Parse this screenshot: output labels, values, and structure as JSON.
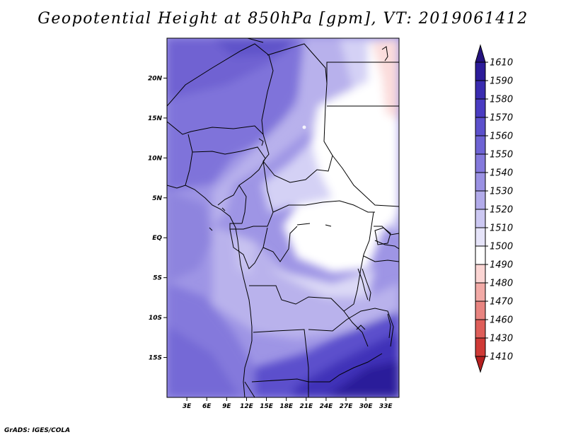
{
  "title": "Geopotential Height at 850hPa [gpm], VT: 2019061412",
  "credit": "GrADS: IGES/COLA",
  "map": {
    "variable": "Geopotential Height at 850hPa",
    "units": "gpm",
    "valid_time": "2019061412",
    "lon_range": [
      0,
      35
    ],
    "lat_range": [
      -20,
      25
    ],
    "x_ticks": [
      "3E",
      "6E",
      "9E",
      "12E",
      "15E",
      "18E",
      "21E",
      "24E",
      "27E",
      "30E",
      "33E"
    ],
    "y_ticks": [
      "20N",
      "15N",
      "10N",
      "5N",
      "EQ",
      "5S",
      "10S",
      "15S"
    ]
  },
  "colorbar": {
    "levels": [
      "1610",
      "1590",
      "1580",
      "1570",
      "1560",
      "1550",
      "1540",
      "1530",
      "1520",
      "1510",
      "1500",
      "1490",
      "1480",
      "1470",
      "1460",
      "1430",
      "1410"
    ],
    "colors": [
      "#24127e",
      "#2c1c9a",
      "#3a2cb0",
      "#4a3cc2",
      "#5c50cc",
      "#6e63d4",
      "#8479dc",
      "#9a91e3",
      "#b2abea",
      "#ccc8f2",
      "#e6e4f9",
      "#ffffff",
      "#fbd5d3",
      "#f2aaa6",
      "#e88480",
      "#de5e59",
      "#cf3a36",
      "#b51f1f"
    ]
  }
}
